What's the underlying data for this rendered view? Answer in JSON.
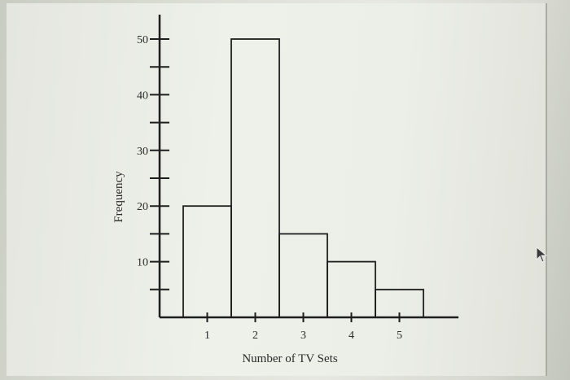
{
  "chart_data": {
    "type": "bar",
    "categories": [
      "1",
      "2",
      "3",
      "4",
      "5"
    ],
    "values": [
      20,
      50,
      15,
      10,
      5
    ],
    "xlabel": "Number of TV Sets",
    "ylabel": "Frequency",
    "ylim": [
      0,
      50
    ],
    "y_ticks": [
      "10",
      "20",
      "30",
      "40",
      "50"
    ],
    "grid": false
  }
}
